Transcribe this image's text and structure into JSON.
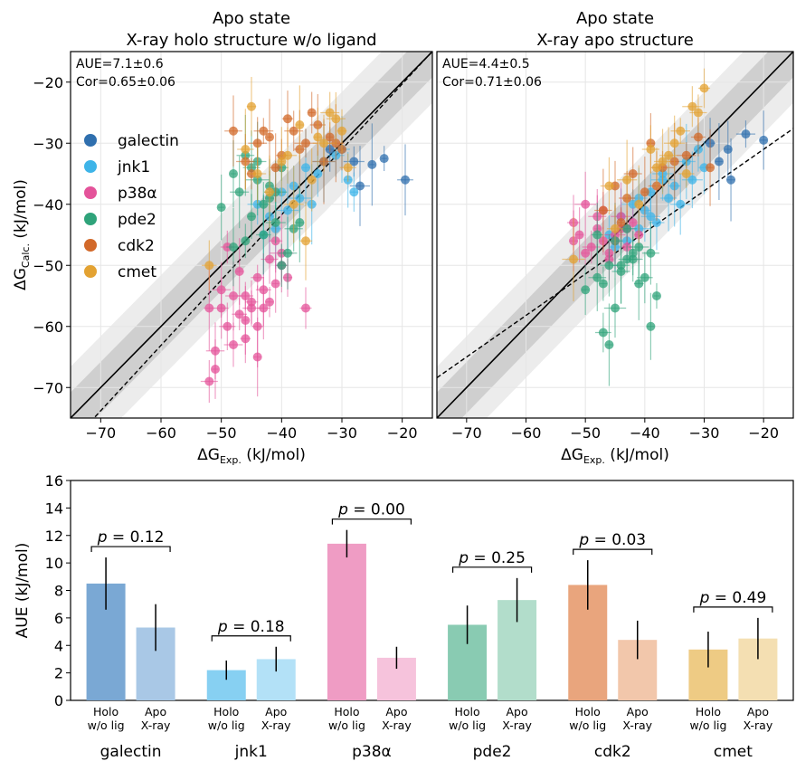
{
  "chart_data": [
    {
      "type": "scatter",
      "title": [
        "Apo state",
        "X-ray holo structure w/o ligand"
      ],
      "xlabel": "ΔG",
      "xlabel_sub": "Exp.",
      "xlabel_unit": "(kJ/mol)",
      "ylabel": "ΔG",
      "ylabel_sub": "Calc.",
      "ylabel_unit": "(kJ/mol)",
      "xlim": [
        -75,
        -15
      ],
      "ylim": [
        -75,
        -15
      ],
      "xticks": [
        -70,
        -60,
        -50,
        -40,
        -30,
        -20
      ],
      "yticks": [
        -70,
        -60,
        -50,
        -40,
        -30,
        -20
      ],
      "stats": [
        "AUE=7.1±0.6",
        "Cor=0.65±0.06"
      ],
      "fit_line": {
        "slope": 1.07,
        "intercept": 1.1
      },
      "legend": [
        {
          "name": "galectin",
          "color": "#2f6fae"
        },
        {
          "name": "jnk1",
          "color": "#3eb4e8"
        },
        {
          "name": "p38α",
          "color": "#e4539a"
        },
        {
          "name": "pde2",
          "color": "#2fa37a"
        },
        {
          "name": "cdk2",
          "color": "#d2692a"
        },
        {
          "name": "cmet",
          "color": "#e3a232"
        }
      ],
      "series": [
        {
          "name": "galectin",
          "x": [
            -28,
            -25,
            -23,
            -19.5,
            -27,
            -32
          ],
          "y": [
            -33,
            -33.5,
            -32.5,
            -36,
            -37,
            -31
          ]
        },
        {
          "name": "jnk1",
          "x": [
            -44,
            -42,
            -40,
            -38,
            -36,
            -35,
            -33,
            -31,
            -29,
            -41,
            -37,
            -43,
            -39,
            -34,
            -30,
            -28
          ],
          "y": [
            -40,
            -42,
            -38,
            -37,
            -34,
            -40,
            -33,
            -32,
            -36,
            -44,
            -39,
            -45,
            -41,
            -35,
            -31,
            -38
          ]
        },
        {
          "name": "p38α",
          "x": [
            -52,
            -51,
            -50,
            -49,
            -48,
            -47,
            -46,
            -45,
            -44,
            -43,
            -42,
            -41,
            -40,
            -39,
            -51,
            -48,
            -46,
            -44,
            -42,
            -40,
            -50,
            -47,
            -45,
            -43,
            -36,
            -52,
            -49,
            -46,
            -44,
            -41
          ],
          "y": [
            -57,
            -64,
            -57,
            -60,
            -63,
            -58,
            -55,
            -57,
            -60,
            -57,
            -56,
            -53,
            -50,
            -52,
            -67,
            -55,
            -62,
            -65,
            -49,
            -48,
            -54,
            -51,
            -56,
            -54,
            -57,
            -69,
            -47,
            -59,
            -52,
            -46
          ]
        },
        {
          "name": "pde2",
          "x": [
            -50,
            -48,
            -47,
            -46,
            -45,
            -44,
            -43,
            -42,
            -41,
            -40,
            -39,
            -38,
            -46,
            -44,
            -42,
            -48,
            -40,
            -45,
            -43,
            -41,
            -37
          ],
          "y": [
            -40.5,
            -35,
            -38,
            -32,
            -42,
            -36,
            -40,
            -37,
            -43,
            -34,
            -48,
            -44,
            -46,
            -33,
            -39,
            -47,
            -50,
            -34,
            -45,
            -38,
            -43
          ]
        },
        {
          "name": "cdk2",
          "x": [
            -48,
            -46,
            -44,
            -42,
            -40,
            -38,
            -36,
            -34,
            -32,
            -30,
            -45,
            -41,
            -39,
            -37,
            -35,
            -33,
            -43,
            -31
          ],
          "y": [
            -28,
            -33,
            -30,
            -29,
            -32,
            -28,
            -30,
            -27,
            -29,
            -31,
            -35,
            -34,
            -26,
            -31,
            -25,
            -33,
            -28,
            -30
          ]
        },
        {
          "name": "cmet",
          "x": [
            -52,
            -45,
            -44,
            -42,
            -40,
            -38,
            -36,
            -35,
            -33,
            -31,
            -30,
            -46,
            -39,
            -37,
            -34,
            -32,
            -29
          ],
          "y": [
            -50,
            -24,
            -35,
            -38,
            -33,
            -40,
            -46,
            -36,
            -30,
            -26,
            -28,
            -31,
            -32,
            -27,
            -29,
            -25,
            -34
          ]
        }
      ]
    },
    {
      "type": "scatter",
      "title": [
        "Apo state",
        "X-ray apo structure"
      ],
      "xlabel": "ΔG",
      "xlabel_sub": "Exp.",
      "xlabel_unit": "(kJ/mol)",
      "xlim": [
        -75,
        -15
      ],
      "ylim": [
        -75,
        -15
      ],
      "xticks": [
        -70,
        -60,
        -50,
        -40,
        -30,
        -20
      ],
      "stats": [
        "AUE=4.4±0.5",
        "Cor=0.71±0.06"
      ],
      "fit_line": {
        "slope": 0.68,
        "intercept": -17.4
      },
      "series": [
        {
          "name": "galectin",
          "x": [
            -26,
            -23,
            -20,
            -27.5,
            -29,
            -25.5
          ],
          "y": [
            -31,
            -28.5,
            -29.5,
            -33,
            -30,
            -36
          ]
        },
        {
          "name": "jnk1",
          "x": [
            -46,
            -44,
            -43,
            -42,
            -41,
            -40,
            -39,
            -38,
            -37,
            -36,
            -35,
            -34,
            -33,
            -32,
            -30,
            -45,
            -41,
            -39,
            -37,
            -31
          ],
          "y": [
            -45,
            -42,
            -46,
            -40,
            -44,
            -41,
            -38,
            -43,
            -35,
            -39,
            -37,
            -40,
            -33,
            -36,
            -34,
            -47,
            -39,
            -42,
            -36,
            -31
          ]
        },
        {
          "name": "p38α",
          "x": [
            -52,
            -51,
            -50,
            -49,
            -48,
            -47,
            -46,
            -45,
            -44,
            -43,
            -42,
            -41,
            -50,
            -47,
            -45,
            -44,
            -48,
            -46,
            -43,
            -52
          ],
          "y": [
            -43,
            -45,
            -40,
            -47,
            -44,
            -46,
            -48,
            -45,
            -42,
            -47,
            -43,
            -45,
            -48,
            -41,
            -46,
            -44,
            -42,
            -49,
            -44,
            -46
          ]
        },
        {
          "name": "pde2",
          "x": [
            -50,
            -48,
            -47,
            -46,
            -45,
            -44,
            -43,
            -42,
            -41,
            -40,
            -39,
            -38,
            -46,
            -44,
            -42,
            -48,
            -39,
            -45,
            -43,
            -41,
            -47
          ],
          "y": [
            -54,
            -52,
            -53,
            -63,
            -57,
            -50,
            -49,
            -48,
            -47,
            -52,
            -60,
            -55,
            -50,
            -51,
            -49,
            -45,
            -48,
            -46,
            -44,
            -53,
            -61
          ]
        },
        {
          "name": "cdk2",
          "x": [
            -47,
            -45,
            -44,
            -42,
            -40,
            -39,
            -37,
            -35,
            -33,
            -31,
            -29,
            -43,
            -38
          ],
          "y": [
            -41,
            -37,
            -43,
            -35,
            -38,
            -30,
            -34,
            -33,
            -32,
            -29,
            -34,
            -39,
            -37
          ]
        },
        {
          "name": "cmet",
          "x": [
            -52,
            -46,
            -45,
            -43,
            -41,
            -39,
            -37,
            -35,
            -33,
            -32,
            -31,
            -30,
            -38,
            -36,
            -34
          ],
          "y": [
            -49,
            -37,
            -44,
            -36,
            -40,
            -31,
            -33,
            -30,
            -35,
            -24,
            -25,
            -21,
            -34,
            -32,
            -28
          ]
        }
      ]
    },
    {
      "type": "bar",
      "ylabel": "AUE (kJ/mol)",
      "ylim": [
        0,
        16
      ],
      "yticks": [
        0,
        2,
        4,
        6,
        8,
        10,
        12,
        14,
        16
      ],
      "bar_labels": [
        [
          "Holo",
          "w/o lig"
        ],
        [
          "Apo",
          "X-ray"
        ]
      ],
      "groups": [
        {
          "name": "galectin",
          "values": [
            8.5,
            5.3
          ],
          "errors": [
            1.9,
            1.7
          ],
          "p": "p = 0.12",
          "colors": [
            "#7aa8d4",
            "#a9c8e6"
          ]
        },
        {
          "name": "jnk1",
          "values": [
            2.2,
            3.0
          ],
          "errors": [
            0.7,
            0.9
          ],
          "p": "p = 0.18",
          "colors": [
            "#87d0f2",
            "#b3e1f7"
          ]
        },
        {
          "name": "p38α",
          "values": [
            11.4,
            3.1
          ],
          "errors": [
            1.0,
            0.8
          ],
          "p": "p = 0.00",
          "colors": [
            "#ef9cc4",
            "#f6c3dc"
          ]
        },
        {
          "name": "pde2",
          "values": [
            5.5,
            7.3
          ],
          "errors": [
            1.4,
            1.6
          ],
          "p": "p = 0.25",
          "colors": [
            "#89cbb2",
            "#b2ddcb"
          ]
        },
        {
          "name": "cdk2",
          "values": [
            8.4,
            4.4
          ],
          "errors": [
            1.8,
            1.4
          ],
          "p": "p = 0.03",
          "colors": [
            "#e9a57d",
            "#f2c7ab"
          ]
        },
        {
          "name": "cmet",
          "values": [
            3.7,
            4.5
          ],
          "errors": [
            1.3,
            1.5
          ],
          "p": "p = 0.49",
          "colors": [
            "#eecb84",
            "#f4dfb2"
          ]
        }
      ]
    }
  ]
}
